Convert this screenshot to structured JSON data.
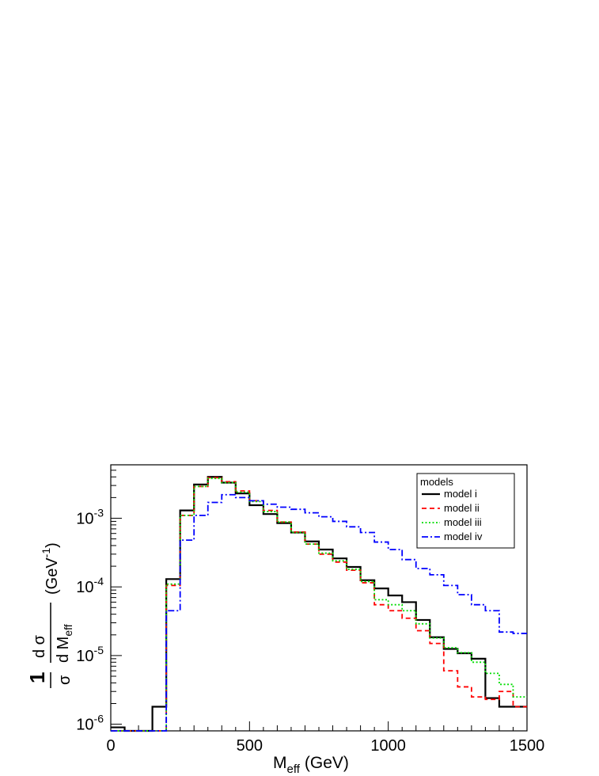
{
  "chart_data": {
    "type": "line",
    "drawstyle": "steps",
    "title": "",
    "xlabel": {
      "main": "M",
      "sub": "eff",
      "unit": "(GeV)"
    },
    "ylabel": {
      "one": "1",
      "sigma": "σ",
      "num": "d σ",
      "den": "d M",
      "den_sub": "eff",
      "unit": "(GeV",
      "unit_exp": "-1",
      "unit_close": ")"
    },
    "xlim": [
      0,
      1500
    ],
    "ylim": [
      8e-07,
      0.006
    ],
    "yscale": "log",
    "xticks": [
      {
        "value": 0,
        "label": "0"
      },
      {
        "value": 500,
        "label": "500"
      },
      {
        "value": 1000,
        "label": "1000"
      },
      {
        "value": 1500,
        "label": "1500"
      }
    ],
    "yticks": [
      {
        "value": 1e-06,
        "base": "10",
        "exp": "-6"
      },
      {
        "value": 1e-05,
        "base": "10",
        "exp": "-5"
      },
      {
        "value": 0.0001,
        "base": "10",
        "exp": "-4"
      },
      {
        "value": 0.001,
        "base": "10",
        "exp": "-3"
      }
    ],
    "bin_edges": [
      0,
      50,
      100,
      150,
      200,
      250,
      300,
      350,
      400,
      450,
      500,
      550,
      600,
      650,
      700,
      750,
      800,
      850,
      900,
      950,
      1000,
      1050,
      1100,
      1150,
      1200,
      1250,
      1300,
      1350,
      1400,
      1450,
      1500
    ],
    "legend": {
      "title": "models",
      "position": "top-right"
    },
    "series": [
      {
        "name": "model i",
        "color": "#000000",
        "dash": "",
        "width": 2.2,
        "values": [
          9e-07,
          0,
          0,
          1.8e-06,
          0.00013,
          0.0013,
          0.0031,
          0.004,
          0.0033,
          0.0023,
          0.00155,
          0.00115,
          0.00085,
          0.00062,
          0.00046,
          0.00035,
          0.00026,
          0.000195,
          0.000125,
          9.5e-05,
          7.5e-05,
          6e-05,
          3.3e-05,
          1.85e-05,
          1.25e-05,
          1.08e-05,
          9e-06,
          2.4e-06,
          1.8e-06,
          1.8e-06
        ]
      },
      {
        "name": "model ii",
        "color": "#ff0000",
        "dash": "6,4",
        "width": 1.8,
        "values": [
          0,
          0,
          0,
          0,
          0.000105,
          0.0011,
          0.0029,
          0.0039,
          0.0034,
          0.0025,
          0.0018,
          0.0013,
          0.00088,
          0.00063,
          0.00042,
          0.0003,
          0.00023,
          0.000175,
          0.000115,
          5.5e-05,
          4.5e-05,
          3.5e-05,
          2.3e-05,
          1.5e-05,
          6e-06,
          3.5e-06,
          2.5e-06,
          2.3e-06,
          3e-06,
          1.8e-06
        ]
      },
      {
        "name": "model iii",
        "color": "#00dd00",
        "dash": "2,2.5",
        "width": 1.8,
        "values": [
          0,
          0,
          0,
          0,
          0.00011,
          0.0011,
          0.0029,
          0.0038,
          0.0033,
          0.0024,
          0.00175,
          0.00125,
          0.00088,
          0.00062,
          0.00042,
          0.00031,
          0.00024,
          0.00018,
          0.00012,
          6.5e-05,
          5.5e-05,
          4.5e-05,
          2.9e-05,
          1.8e-05,
          1.3e-05,
          1.1e-05,
          8e-06,
          5.5e-06,
          3.8e-06,
          2.5e-06
        ]
      },
      {
        "name": "model iv",
        "color": "#0000ff",
        "dash": "8,3,2,3",
        "width": 1.8,
        "values": [
          0,
          0,
          0,
          0,
          4.5e-05,
          0.00048,
          0.0011,
          0.0017,
          0.0022,
          0.002,
          0.0018,
          0.0016,
          0.00145,
          0.00135,
          0.0012,
          0.00105,
          0.0009,
          0.00075,
          0.00062,
          0.00045,
          0.00035,
          0.00025,
          0.000185,
          0.00015,
          0.000105,
          7.7e-05,
          5.5e-05,
          4.5e-05,
          2.2e-05,
          2.1e-05
        ]
      }
    ]
  }
}
